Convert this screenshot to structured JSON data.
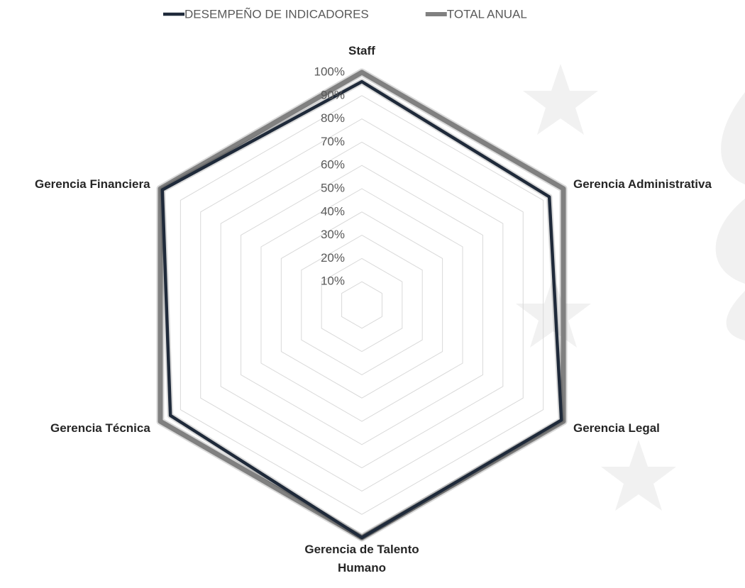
{
  "chart_data": {
    "type": "radar",
    "categories": [
      "Staff",
      "Gerencia Administrativa",
      "Gerencia Legal",
      "Gerencia de Talento Humano",
      "Gerencia Técnica",
      "Gerencia Financiera"
    ],
    "series": [
      {
        "name": "DESEMPEÑO DE INDICADORES",
        "color": "#1f2a3a",
        "values": [
          96,
          93,
          99,
          100,
          95,
          99
        ]
      },
      {
        "name": "TOTAL ANUAL",
        "color": "#808080",
        "values": [
          100,
          100,
          100,
          100,
          100,
          100
        ]
      }
    ],
    "ylim": [
      0,
      100
    ],
    "yticks": [
      {
        "value": 10,
        "label": "10%"
      },
      {
        "value": 20,
        "label": "20%"
      },
      {
        "value": 30,
        "label": "30%"
      },
      {
        "value": 40,
        "label": "40%"
      },
      {
        "value": 50,
        "label": "50%"
      },
      {
        "value": 60,
        "label": "60%"
      },
      {
        "value": 70,
        "label": "70%"
      },
      {
        "value": 80,
        "label": "80%"
      },
      {
        "value": 90,
        "label": "90%"
      },
      {
        "value": 100,
        "label": "100%"
      }
    ],
    "grid": true,
    "legend": "top"
  }
}
